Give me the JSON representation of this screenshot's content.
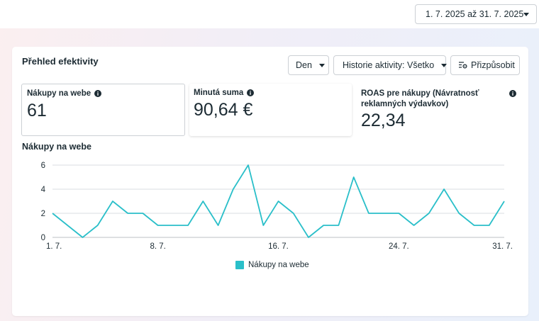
{
  "header": {
    "date_range": "1. 7. 2025 až 31. 7. 2025"
  },
  "panel": {
    "title": "Přehled efektivity",
    "controls": {
      "granularity": "Den",
      "activity_history": "Historie aktivity: Všetko",
      "customize": "Přizpůsobit"
    },
    "metrics": [
      {
        "label": "Nákupy na webe",
        "value": "61",
        "selected": true
      },
      {
        "label": "Minutá suma",
        "value": "90,64 €",
        "selected": false
      },
      {
        "label": "ROAS pre nákupy (Návratnosť",
        "label_line2": "reklamných výdavkov)",
        "value": "22,34",
        "selected": false
      }
    ]
  },
  "colors": {
    "accent": "#2abfc9",
    "text": "#1c2b33",
    "grid": "#dadde1"
  },
  "icons": {
    "date": "calendar-icon",
    "customize": "settings-sliders-icon",
    "info": "info-icon"
  },
  "chart_data": {
    "type": "line",
    "title": "Nákupy na webe",
    "x": [
      1,
      2,
      3,
      4,
      5,
      6,
      7,
      8,
      9,
      10,
      11,
      12,
      13,
      14,
      15,
      16,
      17,
      18,
      19,
      20,
      21,
      22,
      23,
      24,
      25,
      26,
      27,
      28,
      29,
      30,
      31
    ],
    "xticks": [
      {
        "day": 1,
        "label": "1. 7."
      },
      {
        "day": 8,
        "label": "8. 7."
      },
      {
        "day": 16,
        "label": "16. 7."
      },
      {
        "day": 24,
        "label": "24. 7."
      },
      {
        "day": 31,
        "label": "31. 7."
      }
    ],
    "series": [
      {
        "name": "Nákupy na webe",
        "values": [
          2,
          1,
          0,
          1,
          3,
          2,
          2,
          1,
          1,
          1,
          3,
          1,
          4,
          6,
          1,
          3,
          2,
          0,
          1,
          1,
          5,
          2,
          2,
          2,
          1,
          2,
          4,
          2,
          1,
          1,
          3
        ]
      }
    ],
    "ylim": [
      0,
      6
    ],
    "yticks": [
      "0",
      "2",
      "4",
      "6"
    ],
    "grid": true,
    "legend": "bottom-center"
  }
}
